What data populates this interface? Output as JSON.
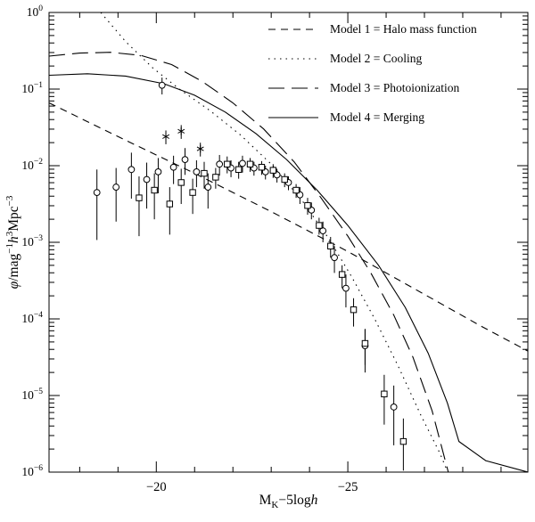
{
  "chart_data": {
    "type": "line+scatter",
    "title": "",
    "xlabel_parts": [
      {
        "t": "M"
      },
      {
        "t": "K",
        "sub": true
      },
      {
        "t": "−5log"
      },
      {
        "t": "h",
        "italic": true
      }
    ],
    "ylabel_parts": [
      {
        "t": "φ",
        "italic": true
      },
      {
        "t": "/mag"
      },
      {
        "t": "−1",
        "sup": true
      },
      {
        "t": "h",
        "italic": true
      },
      {
        "t": "3",
        "sup": true
      },
      {
        "t": "Mpc"
      },
      {
        "t": "−3",
        "sup": true
      }
    ],
    "x_axis": {
      "lim": [
        -17.2,
        -29.7
      ],
      "major_ticks": [
        -20,
        -25
      ],
      "tick_labels": [
        "−20",
        "−25"
      ],
      "minor_step": 1
    },
    "y_axis": {
      "scale": "log",
      "lim_exp": [
        0,
        -6
      ],
      "tick_exponents": [
        0,
        -1,
        -2,
        -3,
        -4,
        -5,
        -6
      ]
    },
    "legend": [
      {
        "label": "Model 1 = Halo mass function",
        "style": "short-dash"
      },
      {
        "label": "Model 2 = Cooling",
        "style": "dotted"
      },
      {
        "label": "Model 3 = Photoionization",
        "style": "long-dash"
      },
      {
        "label": "Model 4 = Merging",
        "style": "solid"
      }
    ],
    "models": [
      {
        "name": "Model 1 = Halo mass function",
        "style": "short-dash",
        "points": [
          [
            -17.2,
            -1.18
          ],
          [
            -19.0,
            -1.62
          ],
          [
            -21.0,
            -2.1
          ],
          [
            -23.0,
            -2.6
          ],
          [
            -25.0,
            -3.12
          ],
          [
            -27.0,
            -3.68
          ],
          [
            -28.5,
            -4.1
          ],
          [
            -29.7,
            -4.42
          ]
        ]
      },
      {
        "name": "Model 2 = Cooling",
        "style": "dotted",
        "points": [
          [
            -18.55,
            0.0
          ],
          [
            -19.2,
            -0.38
          ],
          [
            -19.9,
            -0.72
          ],
          [
            -20.6,
            -1.0
          ],
          [
            -21.4,
            -1.28
          ],
          [
            -22.2,
            -1.6
          ],
          [
            -23.0,
            -1.98
          ],
          [
            -23.8,
            -2.45
          ],
          [
            -24.5,
            -2.95
          ],
          [
            -25.1,
            -3.45
          ],
          [
            -25.7,
            -4.0
          ],
          [
            -26.3,
            -4.6
          ],
          [
            -26.9,
            -5.25
          ],
          [
            -27.4,
            -5.75
          ],
          [
            -27.65,
            -6.05
          ]
        ]
      },
      {
        "name": "Model 3 = Photoionization",
        "style": "long-dash",
        "points": [
          [
            -17.2,
            -0.57
          ],
          [
            -18.0,
            -0.53
          ],
          [
            -18.8,
            -0.52
          ],
          [
            -19.6,
            -0.56
          ],
          [
            -20.4,
            -0.68
          ],
          [
            -21.2,
            -0.9
          ],
          [
            -22.0,
            -1.18
          ],
          [
            -22.8,
            -1.52
          ],
          [
            -23.6,
            -1.95
          ],
          [
            -24.3,
            -2.42
          ],
          [
            -25.0,
            -2.92
          ],
          [
            -25.6,
            -3.4
          ],
          [
            -26.2,
            -3.95
          ],
          [
            -26.7,
            -4.5
          ],
          [
            -27.2,
            -5.2
          ],
          [
            -27.65,
            -6.05
          ]
        ]
      },
      {
        "name": "Model 4 = Merging",
        "style": "solid",
        "points": [
          [
            -17.2,
            -0.82
          ],
          [
            -18.2,
            -0.8
          ],
          [
            -19.2,
            -0.83
          ],
          [
            -20.2,
            -0.93
          ],
          [
            -21.0,
            -1.08
          ],
          [
            -21.8,
            -1.3
          ],
          [
            -22.6,
            -1.58
          ],
          [
            -23.4,
            -1.92
          ],
          [
            -24.2,
            -2.32
          ],
          [
            -25.0,
            -2.78
          ],
          [
            -25.8,
            -3.3
          ],
          [
            -26.5,
            -3.85
          ],
          [
            -27.1,
            -4.45
          ],
          [
            -27.6,
            -5.1
          ],
          [
            -27.9,
            -5.6
          ],
          [
            -28.6,
            -5.85
          ],
          [
            -29.7,
            -6.0
          ]
        ]
      }
    ],
    "observations": [
      {
        "symbol": "circle",
        "points": [
          [
            -18.45,
            -2.35,
            0.3,
            0.62
          ],
          [
            -18.95,
            -2.28,
            0.25,
            0.45
          ],
          [
            -19.35,
            -2.05,
            0.22,
            0.38
          ],
          [
            -19.75,
            -2.18,
            0.22,
            0.38
          ],
          [
            -20.05,
            -2.08,
            0.18,
            0.28
          ],
          [
            -20.15,
            -0.95,
            0.1,
            0.12
          ],
          [
            -20.45,
            -2.02,
            0.15,
            0.22
          ],
          [
            -20.75,
            -1.92,
            0.15,
            0.2
          ],
          [
            -21.05,
            -2.08,
            0.15,
            0.2
          ],
          [
            -21.35,
            -2.28,
            0.18,
            0.28
          ],
          [
            -21.65,
            -1.98,
            0.12,
            0.15
          ],
          [
            -21.95,
            -2.03,
            0.1,
            0.12
          ],
          [
            -22.25,
            -1.97,
            0.1,
            0.12
          ],
          [
            -22.55,
            -2.03,
            0.08,
            0.1
          ],
          [
            -22.85,
            -2.08,
            0.08,
            0.1
          ],
          [
            -23.15,
            -2.12,
            0.08,
            0.1
          ],
          [
            -23.45,
            -2.22,
            0.08,
            0.1
          ],
          [
            -23.75,
            -2.38,
            0.1,
            0.12
          ],
          [
            -24.05,
            -2.58,
            0.1,
            0.12
          ],
          [
            -24.35,
            -2.85,
            0.12,
            0.15
          ],
          [
            -24.65,
            -3.2,
            0.15,
            0.2
          ],
          [
            -24.95,
            -3.6,
            0.18,
            0.25
          ],
          [
            -25.45,
            -4.35,
            0.22,
            0.35
          ],
          [
            -26.2,
            -5.15,
            0.28,
            0.5
          ]
        ]
      },
      {
        "symbol": "square",
        "points": [
          [
            -19.55,
            -2.42,
            0.28,
            0.5
          ],
          [
            -19.95,
            -2.32,
            0.22,
            0.38
          ],
          [
            -20.35,
            -2.5,
            0.22,
            0.4
          ],
          [
            -20.65,
            -2.22,
            0.18,
            0.28
          ],
          [
            -20.95,
            -2.35,
            0.18,
            0.28
          ],
          [
            -21.25,
            -2.1,
            0.15,
            0.2
          ],
          [
            -21.55,
            -2.15,
            0.12,
            0.15
          ],
          [
            -21.85,
            -1.98,
            0.1,
            0.12
          ],
          [
            -22.15,
            -2.05,
            0.1,
            0.12
          ],
          [
            -22.45,
            -1.98,
            0.08,
            0.1
          ],
          [
            -22.75,
            -2.02,
            0.08,
            0.1
          ],
          [
            -23.05,
            -2.06,
            0.08,
            0.1
          ],
          [
            -23.35,
            -2.18,
            0.08,
            0.1
          ],
          [
            -23.65,
            -2.32,
            0.08,
            0.1
          ],
          [
            -23.95,
            -2.52,
            0.1,
            0.12
          ],
          [
            -24.25,
            -2.78,
            0.1,
            0.12
          ],
          [
            -24.55,
            -3.05,
            0.12,
            0.15
          ],
          [
            -24.85,
            -3.42,
            0.12,
            0.18
          ],
          [
            -25.15,
            -3.88,
            0.15,
            0.22
          ],
          [
            -25.45,
            -4.32,
            0.18,
            0.28
          ],
          [
            -25.95,
            -4.98,
            0.25,
            0.4
          ],
          [
            -26.45,
            -5.6,
            0.3,
            0.38
          ]
        ]
      },
      {
        "symbol": "star",
        "points": [
          [
            -20.25,
            -1.62,
            0.08,
            0.1
          ],
          [
            -20.65,
            -1.55,
            0.08,
            0.1
          ],
          [
            -21.15,
            -1.78,
            0.08,
            0.1
          ]
        ]
      }
    ],
    "colors": {
      "fg": "#000000",
      "bg": "#ffffff"
    }
  }
}
